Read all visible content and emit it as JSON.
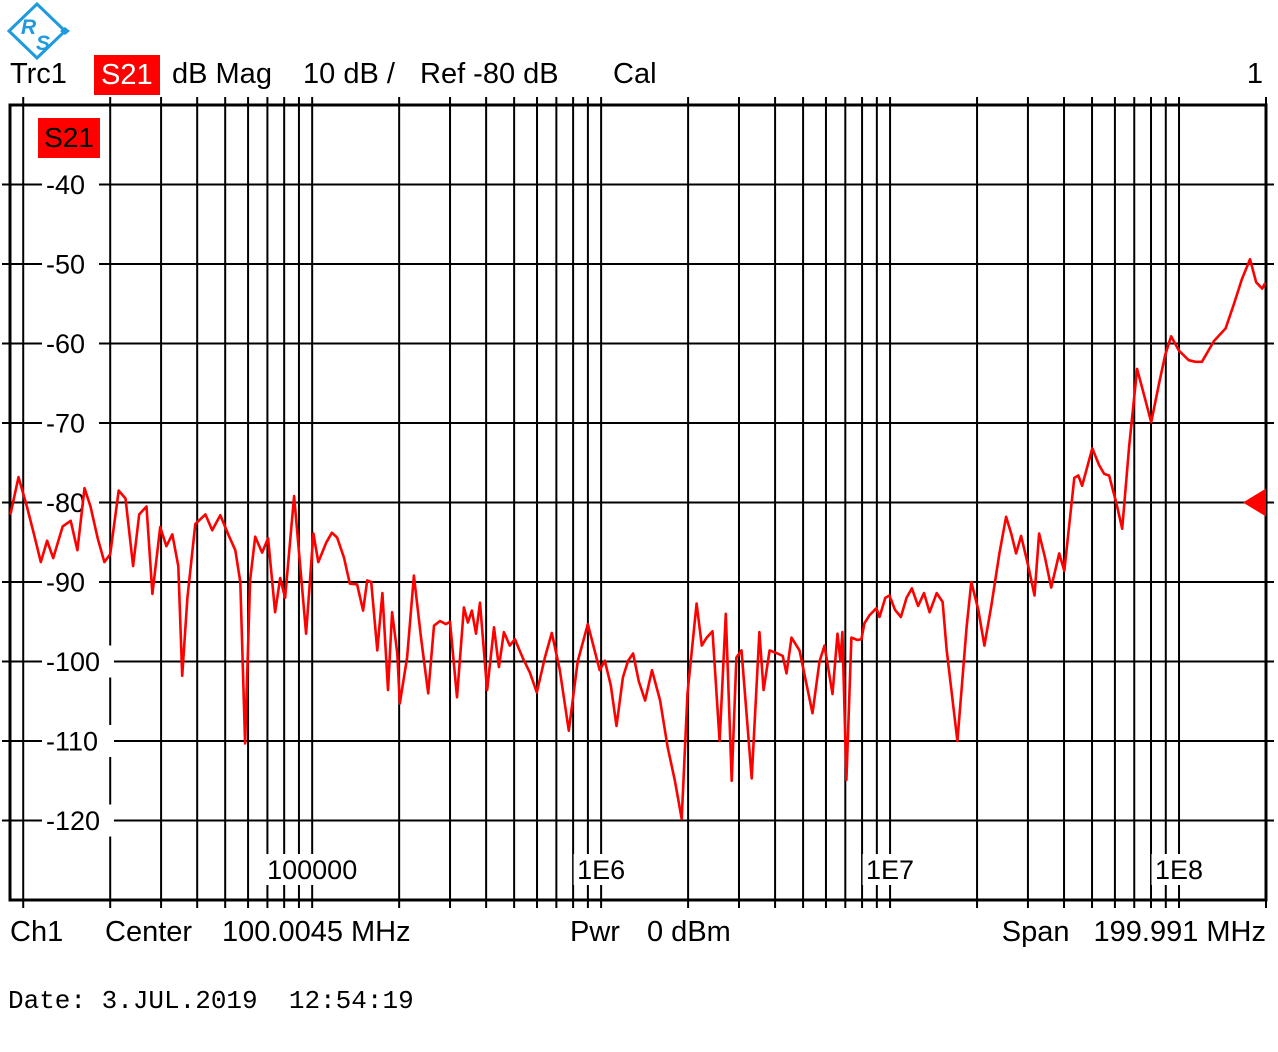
{
  "header": {
    "trace_name": "Trc1",
    "measurement": "S21",
    "format": "dB Mag",
    "scale_per_div": "10 dB /",
    "ref_level": "Ref -80 dB",
    "cal_status": "Cal",
    "window_number": "1"
  },
  "chart_label": "S21",
  "footer": {
    "channel": "Ch1",
    "center_label": "Center",
    "center_value": "100.0045 MHz",
    "pwr_label": "Pwr",
    "pwr_value": "0 dBm",
    "span_label": "Span",
    "span_value": "199.991 MHz"
  },
  "date_line": "Date: 3.JUL.2019  12:54:19",
  "icons": {
    "logo": "rohde-schwarz-diamond",
    "ref_marker": "left-pointing-triangle"
  },
  "colors": {
    "trace": "#ff0000",
    "accent_bg": "#ff0000",
    "grid": "#000000",
    "background": "#ffffff",
    "logo_blue": "#1e9ade"
  },
  "chart_data": {
    "type": "line",
    "title": "Trc1 S21 dB Mag 10 dB / Ref -80 dB",
    "x_scale": "log",
    "x_unit": "Hz",
    "x_range": [
      9000,
      200000000
    ],
    "y_unit": "dB",
    "y_range": [
      -130,
      -30
    ],
    "y_ticks": [
      -40,
      -50,
      -60,
      -70,
      -80,
      -90,
      -100,
      -110,
      -120
    ],
    "x_tick_labels": [
      {
        "value": 100000,
        "label": "100000"
      },
      {
        "value": 1000000,
        "label": "1E6"
      },
      {
        "value": 10000000,
        "label": "1E7"
      },
      {
        "value": 100000000,
        "label": "1E8"
      }
    ],
    "ref_level_db": -80,
    "grid": true,
    "series": [
      {
        "name": "Trc1 S21",
        "color": "#ff0000",
        "points": [
          [
            9040,
            -81.4
          ],
          [
            9630,
            -76.8
          ],
          [
            10300,
            -80.5
          ],
          [
            10900,
            -84
          ],
          [
            11500,
            -87.5
          ],
          [
            12100,
            -84.8
          ],
          [
            12700,
            -87
          ],
          [
            13700,
            -83
          ],
          [
            14600,
            -82.3
          ],
          [
            15400,
            -86
          ],
          [
            16300,
            -78.2
          ],
          [
            17100,
            -80.5
          ],
          [
            18100,
            -84.5
          ],
          [
            19100,
            -87.5
          ],
          [
            20000,
            -86.5
          ],
          [
            21400,
            -78.5
          ],
          [
            22600,
            -79.5
          ],
          [
            24000,
            -88
          ],
          [
            25200,
            -81.5
          ],
          [
            26700,
            -80.5
          ],
          [
            28000,
            -91.5
          ],
          [
            29800,
            -83.1
          ],
          [
            31300,
            -85.5
          ],
          [
            32800,
            -84
          ],
          [
            34400,
            -88
          ],
          [
            35500,
            -101.8
          ],
          [
            37000,
            -92
          ],
          [
            39400,
            -82.7
          ],
          [
            42700,
            -81.5
          ],
          [
            45100,
            -83.5
          ],
          [
            48100,
            -81.6
          ],
          [
            51200,
            -84
          ],
          [
            54200,
            -86
          ],
          [
            56400,
            -90
          ],
          [
            58600,
            -110.3
          ],
          [
            61000,
            -89.8
          ],
          [
            63500,
            -84.3
          ],
          [
            67100,
            -86.3
          ],
          [
            70400,
            -84.5
          ],
          [
            74400,
            -93.8
          ],
          [
            77500,
            -89.5
          ],
          [
            80600,
            -92
          ],
          [
            86600,
            -79.2
          ],
          [
            95300,
            -96.5
          ],
          [
            101000,
            -83.9
          ],
          [
            105000,
            -87.5
          ],
          [
            112000,
            -85
          ],
          [
            117000,
            -83.8
          ],
          [
            122000,
            -84.4
          ],
          [
            129000,
            -87
          ],
          [
            135000,
            -90.2
          ],
          [
            143000,
            -90.3
          ],
          [
            150000,
            -93.6
          ],
          [
            155000,
            -89.8
          ],
          [
            160000,
            -90
          ],
          [
            168000,
            -98.6
          ],
          [
            175000,
            -91.4
          ],
          [
            183000,
            -103.6
          ],
          [
            189000,
            -93.8
          ],
          [
            197000,
            -99
          ],
          [
            201000,
            -105.3
          ],
          [
            213000,
            -99.5
          ],
          [
            225000,
            -89.2
          ],
          [
            238000,
            -97
          ],
          [
            252000,
            -104
          ],
          [
            264000,
            -95.5
          ],
          [
            277000,
            -94.9
          ],
          [
            290000,
            -95.3
          ],
          [
            300000,
            -95
          ],
          [
            317000,
            -104.5
          ],
          [
            335000,
            -93.2
          ],
          [
            346000,
            -95.1
          ],
          [
            357000,
            -93.6
          ],
          [
            369000,
            -96.5
          ],
          [
            381000,
            -92.6
          ],
          [
            403000,
            -103.6
          ],
          [
            426000,
            -95.7
          ],
          [
            443000,
            -100.7
          ],
          [
            461000,
            -96.3
          ],
          [
            483000,
            -98
          ],
          [
            503000,
            -97.2
          ],
          [
            536000,
            -99.6
          ],
          [
            567000,
            -101.4
          ],
          [
            599000,
            -103.9
          ],
          [
            639000,
            -99.5
          ],
          [
            675000,
            -96.4
          ],
          [
            719000,
            -101
          ],
          [
            773000,
            -108.7
          ],
          [
            830000,
            -100
          ],
          [
            899000,
            -95.3
          ],
          [
            989000,
            -101.1
          ],
          [
            1030000,
            -99.9
          ],
          [
            1080000,
            -103
          ],
          [
            1130000,
            -108.1
          ],
          [
            1190000,
            -102
          ],
          [
            1240000,
            -99.9
          ],
          [
            1290000,
            -99
          ],
          [
            1350000,
            -102.5
          ],
          [
            1420000,
            -104.9
          ],
          [
            1500000,
            -101.1
          ],
          [
            1600000,
            -104.9
          ],
          [
            1700000,
            -110.8
          ],
          [
            1800000,
            -115
          ],
          [
            1900000,
            -119.8
          ],
          [
            1990000,
            -104
          ],
          [
            2140000,
            -92.7
          ],
          [
            2230000,
            -98
          ],
          [
            2320000,
            -97
          ],
          [
            2430000,
            -96.2
          ],
          [
            2570000,
            -110
          ],
          [
            2700000,
            -94
          ],
          [
            2830000,
            -115
          ],
          [
            2940000,
            -99.5
          ],
          [
            3060000,
            -98.6
          ],
          [
            3320000,
            -114.7
          ],
          [
            3530000,
            -96.3
          ],
          [
            3650000,
            -103.6
          ],
          [
            3830000,
            -98.6
          ],
          [
            4080000,
            -99
          ],
          [
            4250000,
            -99.3
          ],
          [
            4380000,
            -101.5
          ],
          [
            4560000,
            -97
          ],
          [
            4860000,
            -98.6
          ],
          [
            5390000,
            -106.5
          ],
          [
            5700000,
            -100
          ],
          [
            5930000,
            -98
          ],
          [
            6320000,
            -104.1
          ],
          [
            6580000,
            -96.5
          ],
          [
            6730000,
            -99.9
          ],
          [
            6840000,
            -96.3
          ],
          [
            7060000,
            -114.9
          ],
          [
            7350000,
            -97
          ],
          [
            7710000,
            -97.3
          ],
          [
            7960000,
            -97.2
          ],
          [
            8150000,
            -95.2
          ],
          [
            8480000,
            -94.2
          ],
          [
            8970000,
            -93.3
          ],
          [
            9190000,
            -94.4
          ],
          [
            9630000,
            -92
          ],
          [
            9950000,
            -91.7
          ],
          [
            10400000,
            -93.5
          ],
          [
            10900000,
            -94.4
          ],
          [
            11400000,
            -92
          ],
          [
            11900000,
            -90.8
          ],
          [
            12500000,
            -93
          ],
          [
            13100000,
            -91.4
          ],
          [
            13700000,
            -93.8
          ],
          [
            14500000,
            -91.4
          ],
          [
            15200000,
            -92.5
          ],
          [
            15700000,
            -98.6
          ],
          [
            17100000,
            -110
          ],
          [
            18400000,
            -95.7
          ],
          [
            19100000,
            -90
          ],
          [
            20200000,
            -93.5
          ],
          [
            21200000,
            -98
          ],
          [
            22400000,
            -93
          ],
          [
            23900000,
            -86.4
          ],
          [
            25200000,
            -81.8
          ],
          [
            26300000,
            -84
          ],
          [
            27300000,
            -86.4
          ],
          [
            28400000,
            -84.2
          ],
          [
            30100000,
            -88
          ],
          [
            31600000,
            -91.7
          ],
          [
            32800000,
            -83.9
          ],
          [
            34400000,
            -87
          ],
          [
            36100000,
            -90.7
          ],
          [
            38500000,
            -86.4
          ],
          [
            40100000,
            -88.6
          ],
          [
            43400000,
            -76.9
          ],
          [
            44800000,
            -76.6
          ],
          [
            46200000,
            -77.9
          ],
          [
            50100000,
            -73.2
          ],
          [
            52900000,
            -75.3
          ],
          [
            55100000,
            -76.4
          ],
          [
            57300000,
            -76.6
          ],
          [
            60600000,
            -80
          ],
          [
            63600000,
            -83.3
          ],
          [
            67200000,
            -73
          ],
          [
            71600000,
            -63.2
          ],
          [
            75700000,
            -66.5
          ],
          [
            80100000,
            -69.9
          ],
          [
            85300000,
            -65
          ],
          [
            89500000,
            -61.5
          ],
          [
            93900000,
            -59.1
          ],
          [
            100000000,
            -60.9
          ],
          [
            108000000,
            -62.1
          ],
          [
            114000000,
            -62.3
          ],
          [
            120000000,
            -62.3
          ],
          [
            132000000,
            -59.7
          ],
          [
            145000000,
            -58.1
          ],
          [
            155000000,
            -55
          ],
          [
            165000000,
            -51.9
          ],
          [
            176000000,
            -49.4
          ],
          [
            185000000,
            -52.3
          ],
          [
            194000000,
            -53.1
          ],
          [
            198000000,
            -52.5
          ]
        ]
      }
    ]
  }
}
